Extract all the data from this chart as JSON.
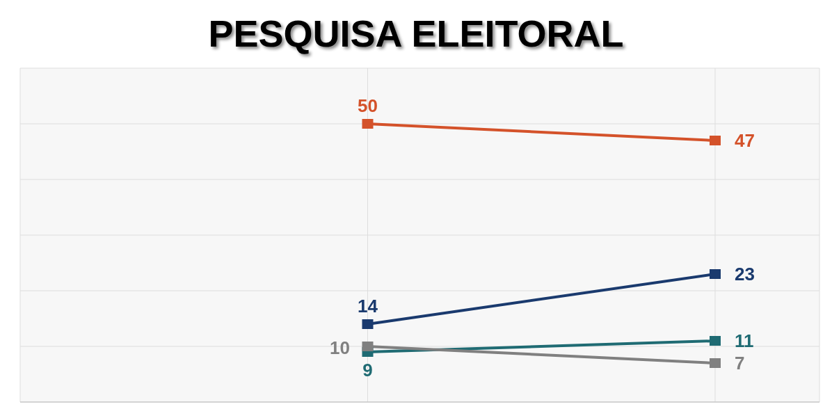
{
  "chart_data": {
    "type": "line",
    "title": "PESQUISA ELEITORAL",
    "categories": [
      null,
      null,
      null
    ],
    "series": [
      {
        "color": "#d4522a",
        "values": [
          null,
          50,
          47
        ]
      },
      {
        "color": "#1a3a6e",
        "values": [
          null,
          14,
          23
        ]
      },
      {
        "color": "#1f6b73",
        "values": [
          null,
          9,
          11
        ]
      },
      {
        "color": "#808080",
        "values": [
          null,
          10,
          7
        ]
      }
    ],
    "ylim": [
      0,
      60
    ],
    "grid": true,
    "marker": "square",
    "line_style": "solid",
    "data_labels": true,
    "tick_labels": false,
    "legend": false
  }
}
